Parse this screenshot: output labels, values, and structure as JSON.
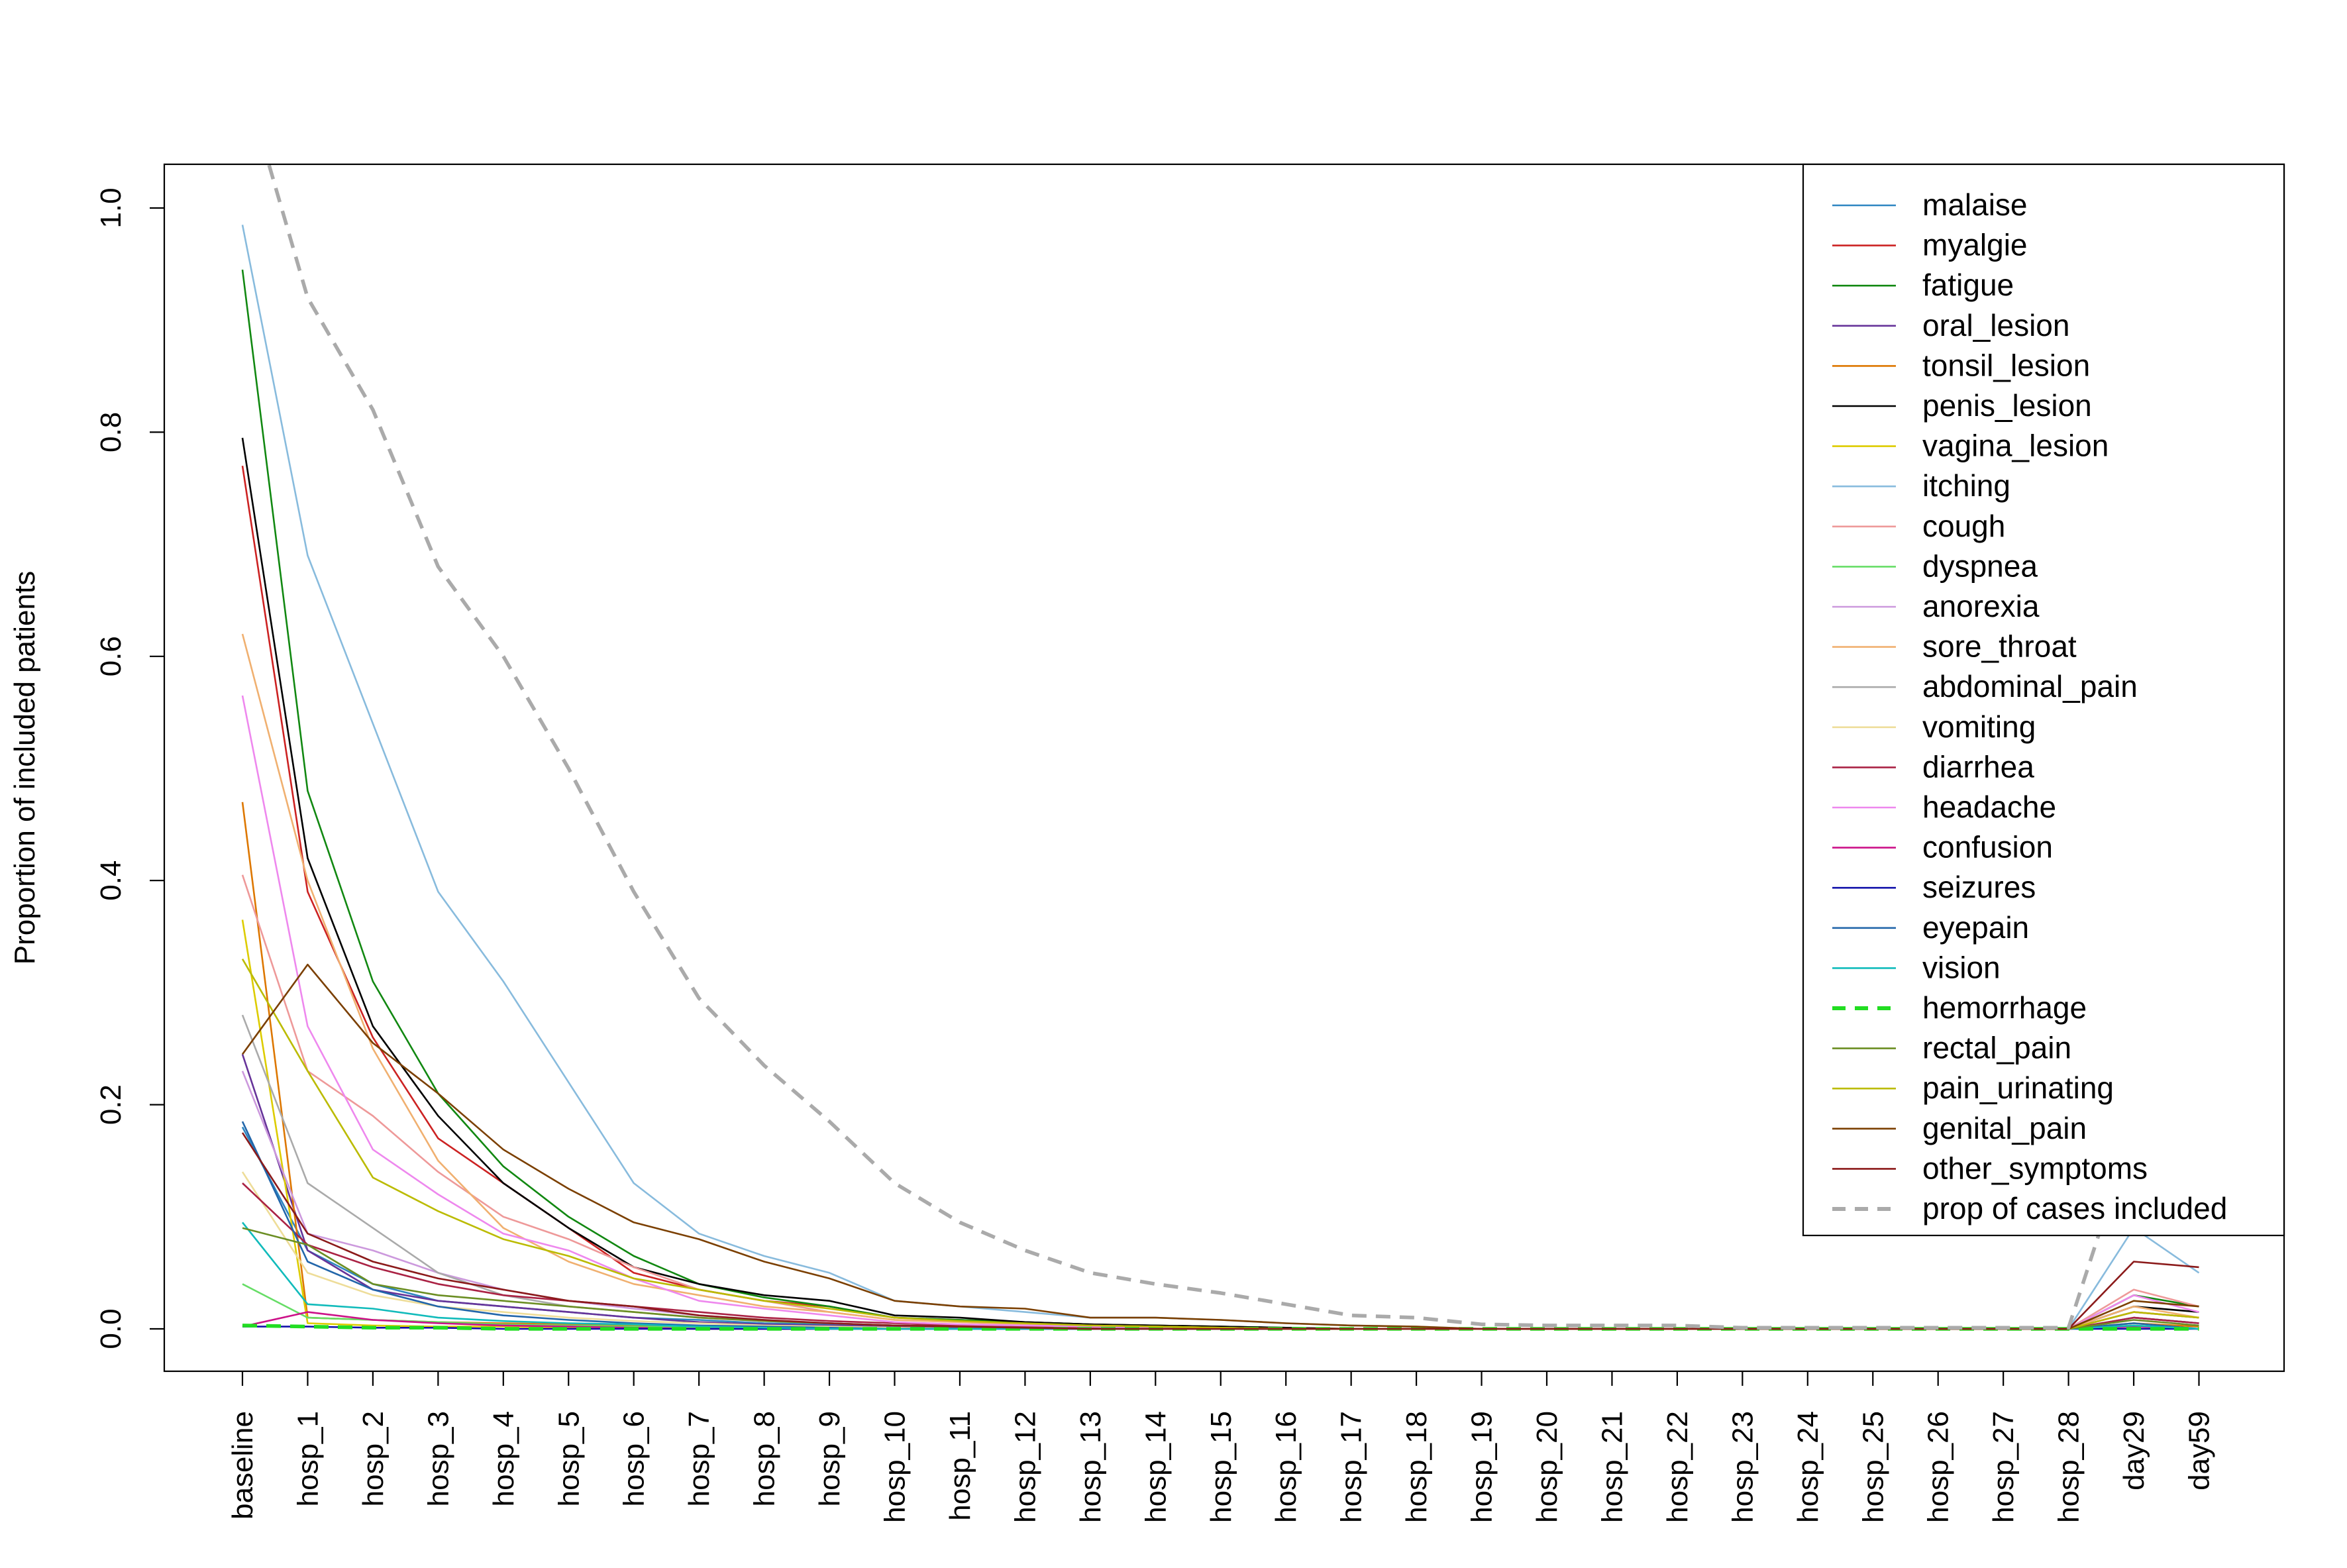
{
  "chart_data": {
    "type": "line",
    "ylabel": "Proportion of included patients",
    "xlabel": "",
    "ylim": [
      0,
      1.0
    ],
    "yticks": [
      "0.0",
      "0.2",
      "0.4",
      "0.6",
      "0.8",
      "1.0"
    ],
    "grid": false,
    "legend_position": "top-right",
    "categories": [
      "baseline",
      "hosp_1",
      "hosp_2",
      "hosp_3",
      "hosp_4",
      "hosp_5",
      "hosp_6",
      "hosp_7",
      "hosp_8",
      "hosp_9",
      "hosp_10",
      "hosp_11",
      "hosp_12",
      "hosp_13",
      "hosp_14",
      "hosp_15",
      "hosp_16",
      "hosp_17",
      "hosp_18",
      "hosp_19",
      "hosp_20",
      "hosp_21",
      "hosp_22",
      "hosp_23",
      "hosp_24",
      "hosp_25",
      "hosp_26",
      "hosp_27",
      "hosp_28",
      "day29",
      "day59"
    ],
    "series": [
      {
        "name": "malaise",
        "color": "#2E86C1",
        "dash": false,
        "values": [
          0.18,
          0.07,
          0.04,
          0.025,
          0.02,
          0.015,
          0.01,
          0.008,
          0.005,
          0.004,
          0.003,
          0.002,
          0.002,
          0.001,
          0.001,
          0.001,
          0,
          0,
          0,
          0,
          0,
          0,
          0,
          0,
          0,
          0,
          0,
          0,
          0,
          0.01,
          0.005
        ]
      },
      {
        "name": "myalgie",
        "color": "#CC2222",
        "dash": false,
        "values": [
          0.77,
          0.39,
          0.26,
          0.17,
          0.13,
          0.09,
          0.05,
          0.035,
          0.025,
          0.02,
          0.01,
          0.008,
          0.006,
          0.004,
          0.003,
          0.002,
          0.001,
          0,
          0,
          0,
          0,
          0,
          0,
          0,
          0,
          0,
          0,
          0,
          0,
          0.015,
          0.01
        ]
      },
      {
        "name": "fatigue",
        "color": "#118811",
        "dash": false,
        "values": [
          0.945,
          0.48,
          0.31,
          0.21,
          0.145,
          0.1,
          0.065,
          0.04,
          0.028,
          0.02,
          0.01,
          0.008,
          0.006,
          0.004,
          0.003,
          0.002,
          0.001,
          0,
          0,
          0,
          0,
          0,
          0,
          0,
          0,
          0,
          0,
          0,
          0,
          0.03,
          0.02
        ]
      },
      {
        "name": "oral_lesion",
        "color": "#663399",
        "dash": false,
        "values": [
          0.245,
          0.07,
          0.035,
          0.025,
          0.02,
          0.015,
          0.01,
          0.006,
          0.004,
          0.003,
          0.002,
          0.001,
          0.001,
          0,
          0,
          0,
          0,
          0,
          0,
          0,
          0,
          0,
          0,
          0,
          0,
          0,
          0,
          0,
          0,
          0.01,
          0.005
        ]
      },
      {
        "name": "tonsil_lesion",
        "color": "#DD7700",
        "dash": false,
        "values": [
          0.47,
          0.01,
          0.008,
          0.006,
          0.005,
          0.004,
          0.003,
          0.002,
          0.002,
          0.001,
          0.001,
          0,
          0,
          0,
          0,
          0,
          0,
          0,
          0,
          0,
          0,
          0,
          0,
          0,
          0,
          0,
          0,
          0,
          0,
          0.005,
          0.002
        ]
      },
      {
        "name": "penis_lesion",
        "color": "#000000",
        "dash": false,
        "values": [
          0.795,
          0.42,
          0.27,
          0.19,
          0.13,
          0.09,
          0.055,
          0.04,
          0.03,
          0.025,
          0.012,
          0.01,
          0.006,
          0.004,
          0.003,
          0.002,
          0.001,
          0,
          0,
          0,
          0,
          0,
          0,
          0,
          0,
          0,
          0,
          0,
          0,
          0.02,
          0.015
        ]
      },
      {
        "name": "vagina_lesion",
        "color": "#DDCC00",
        "dash": false,
        "values": [
          0.365,
          0.005,
          0.003,
          0.002,
          0.002,
          0.001,
          0.001,
          0,
          0,
          0,
          0,
          0,
          0,
          0,
          0,
          0,
          0,
          0,
          0,
          0,
          0,
          0,
          0,
          0,
          0,
          0,
          0,
          0,
          0,
          0.003,
          0
        ]
      },
      {
        "name": "itching",
        "color": "#88BBDD",
        "dash": false,
        "values": [
          0.985,
          0.69,
          0.54,
          0.39,
          0.31,
          0.22,
          0.13,
          0.085,
          0.065,
          0.05,
          0.025,
          0.02,
          0.015,
          0.01,
          0.01,
          0.008,
          0.005,
          0.003,
          0.002,
          0,
          0,
          0,
          0,
          0,
          0,
          0,
          0,
          0,
          0,
          0.09,
          0.05
        ]
      },
      {
        "name": "cough",
        "color": "#EE9999",
        "dash": false,
        "values": [
          0.405,
          0.23,
          0.19,
          0.14,
          0.1,
          0.08,
          0.055,
          0.035,
          0.025,
          0.015,
          0.008,
          0.006,
          0.004,
          0.003,
          0.002,
          0.001,
          0,
          0,
          0,
          0,
          0,
          0,
          0,
          0,
          0,
          0,
          0,
          0,
          0,
          0.035,
          0.02
        ]
      },
      {
        "name": "dyspnea",
        "color": "#66DD66",
        "dash": false,
        "values": [
          0.04,
          0.01,
          0.008,
          0.006,
          0.004,
          0.003,
          0.002,
          0.001,
          0,
          0,
          0,
          0,
          0,
          0,
          0,
          0,
          0,
          0,
          0,
          0,
          0,
          0,
          0,
          0,
          0,
          0,
          0,
          0,
          0,
          0.003,
          0
        ]
      },
      {
        "name": "anorexia",
        "color": "#CC99DD",
        "dash": false,
        "values": [
          0.23,
          0.085,
          0.07,
          0.05,
          0.035,
          0.025,
          0.018,
          0.012,
          0.008,
          0.005,
          0.003,
          0.002,
          0.001,
          0,
          0,
          0,
          0,
          0,
          0,
          0,
          0,
          0,
          0,
          0,
          0,
          0,
          0,
          0,
          0,
          0.015,
          0.01
        ]
      },
      {
        "name": "sore_throat",
        "color": "#F0B070",
        "dash": false,
        "values": [
          0.62,
          0.4,
          0.25,
          0.15,
          0.09,
          0.06,
          0.04,
          0.03,
          0.02,
          0.015,
          0.008,
          0.006,
          0.004,
          0.003,
          0.002,
          0.001,
          0,
          0,
          0,
          0,
          0,
          0,
          0,
          0,
          0,
          0,
          0,
          0,
          0,
          0.02,
          0.01
        ]
      },
      {
        "name": "abdominal_pain",
        "color": "#AAAAAA",
        "dash": false,
        "values": [
          0.28,
          0.13,
          0.09,
          0.05,
          0.03,
          0.02,
          0.015,
          0.01,
          0.007,
          0.005,
          0.003,
          0.002,
          0.001,
          0,
          0,
          0,
          0,
          0,
          0,
          0,
          0,
          0,
          0,
          0,
          0,
          0,
          0,
          0,
          0,
          0.01,
          0.005
        ]
      },
      {
        "name": "vomiting",
        "color": "#EEDD99",
        "dash": false,
        "values": [
          0.14,
          0.05,
          0.03,
          0.02,
          0.015,
          0.01,
          0.007,
          0.005,
          0.003,
          0.002,
          0.001,
          0,
          0,
          0,
          0,
          0,
          0,
          0,
          0,
          0,
          0,
          0,
          0,
          0,
          0,
          0,
          0,
          0,
          0,
          0.005,
          0
        ]
      },
      {
        "name": "diarrhea",
        "color": "#AA2244",
        "dash": false,
        "values": [
          0.13,
          0.075,
          0.055,
          0.04,
          0.03,
          0.025,
          0.02,
          0.015,
          0.01,
          0.007,
          0.005,
          0.003,
          0.002,
          0.001,
          0,
          0,
          0,
          0,
          0,
          0,
          0,
          0,
          0,
          0,
          0,
          0,
          0,
          0,
          0,
          0.01,
          0.005
        ]
      },
      {
        "name": "headache",
        "color": "#EE88EE",
        "dash": false,
        "values": [
          0.565,
          0.27,
          0.16,
          0.12,
          0.085,
          0.07,
          0.045,
          0.025,
          0.018,
          0.012,
          0.006,
          0.004,
          0.003,
          0.002,
          0.001,
          0,
          0,
          0,
          0,
          0,
          0,
          0,
          0,
          0,
          0,
          0,
          0,
          0,
          0,
          0.03,
          0.015
        ]
      },
      {
        "name": "confusion",
        "color": "#CC1188",
        "dash": false,
        "values": [
          0.002,
          0.015,
          0.008,
          0.005,
          0.003,
          0.002,
          0.001,
          0,
          0,
          0,
          0,
          0,
          0,
          0,
          0,
          0,
          0,
          0,
          0,
          0,
          0,
          0,
          0,
          0,
          0,
          0,
          0,
          0,
          0,
          0.002,
          0
        ]
      },
      {
        "name": "seizures",
        "color": "#1111AA",
        "dash": false,
        "values": [
          0.002,
          0.002,
          0.001,
          0.001,
          0,
          0,
          0,
          0,
          0,
          0,
          0,
          0,
          0,
          0,
          0,
          0,
          0,
          0,
          0,
          0,
          0,
          0,
          0,
          0,
          0,
          0,
          0,
          0,
          0,
          0,
          0
        ]
      },
      {
        "name": "eyepain",
        "color": "#2266AA",
        "dash": false,
        "values": [
          0.185,
          0.06,
          0.035,
          0.02,
          0.012,
          0.008,
          0.005,
          0.003,
          0.002,
          0.001,
          0,
          0,
          0,
          0,
          0,
          0,
          0,
          0,
          0,
          0,
          0,
          0,
          0,
          0,
          0,
          0,
          0,
          0,
          0,
          0.005,
          0
        ]
      },
      {
        "name": "vision",
        "color": "#11BBBB",
        "dash": false,
        "values": [
          0.095,
          0.022,
          0.018,
          0.01,
          0.007,
          0.005,
          0.004,
          0.002,
          0.001,
          0,
          0,
          0,
          0,
          0,
          0,
          0,
          0,
          0,
          0,
          0,
          0,
          0,
          0,
          0,
          0,
          0,
          0,
          0,
          0,
          0.003,
          0
        ]
      },
      {
        "name": "hemorrhage",
        "color": "#22DD22",
        "dash": true,
        "values": [
          0.003,
          0.002,
          0.001,
          0.001,
          0,
          0,
          0,
          0,
          0,
          0,
          0,
          0,
          0,
          0,
          0,
          0,
          0,
          0,
          0,
          0,
          0,
          0,
          0,
          0,
          0,
          0,
          0,
          0,
          0,
          0,
          0
        ]
      },
      {
        "name": "rectal_pain",
        "color": "#6B8E23",
        "dash": false,
        "values": [
          0.09,
          0.075,
          0.04,
          0.03,
          0.025,
          0.02,
          0.015,
          0.01,
          0.007,
          0.005,
          0.003,
          0.002,
          0.001,
          0,
          0,
          0,
          0,
          0,
          0,
          0,
          0,
          0,
          0,
          0,
          0,
          0,
          0,
          0,
          0,
          0.008,
          0.003
        ]
      },
      {
        "name": "pain_urinating",
        "color": "#BBBB00",
        "dash": false,
        "values": [
          0.33,
          0.23,
          0.135,
          0.105,
          0.08,
          0.065,
          0.045,
          0.035,
          0.025,
          0.018,
          0.01,
          0.007,
          0.005,
          0.003,
          0.002,
          0.001,
          0,
          0,
          0,
          0,
          0,
          0,
          0,
          0,
          0,
          0,
          0,
          0,
          0,
          0.015,
          0.01
        ]
      },
      {
        "name": "genital_pain",
        "color": "#7B3F00",
        "dash": false,
        "values": [
          0.245,
          0.325,
          0.255,
          0.21,
          0.16,
          0.125,
          0.095,
          0.08,
          0.06,
          0.045,
          0.025,
          0.02,
          0.018,
          0.01,
          0.01,
          0.008,
          0.005,
          0.003,
          0.002,
          0,
          0,
          0,
          0,
          0,
          0,
          0,
          0,
          0,
          0,
          0.025,
          0.02
        ]
      },
      {
        "name": "other_symptoms",
        "color": "#8B1A1A",
        "dash": false,
        "values": [
          0.175,
          0.085,
          0.06,
          0.045,
          0.035,
          0.025,
          0.02,
          0.012,
          0.008,
          0.005,
          0.003,
          0.002,
          0.001,
          0,
          0,
          0,
          0,
          0,
          0,
          0,
          0,
          0,
          0,
          0,
          0,
          0,
          0,
          0,
          0,
          0.06,
          0.055
        ]
      },
      {
        "name": "prop of cases included",
        "color": "#AAAAAA",
        "dash": true,
        "values": [
          1.12,
          0.92,
          0.82,
          0.68,
          0.6,
          0.5,
          0.39,
          0.295,
          0.235,
          0.185,
          0.13,
          0.095,
          0.07,
          0.05,
          0.04,
          0.032,
          0.022,
          0.012,
          0.01,
          0.004,
          0.003,
          0.003,
          0.003,
          0.001,
          0.001,
          0.001,
          0.001,
          0.001,
          0.001,
          0.18,
          0.14
        ]
      }
    ]
  }
}
